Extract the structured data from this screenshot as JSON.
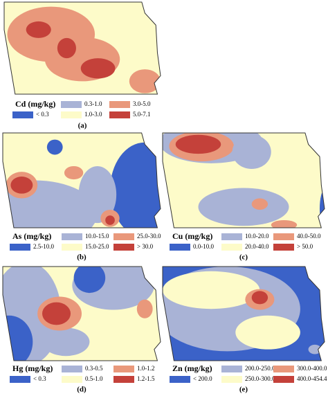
{
  "panels": [
    {
      "caption": "(a)",
      "legend_title": "Cd (mg/kg)",
      "legend": [
        {
          "label": "< 0.3",
          "color": "#3b62c8"
        },
        {
          "label": "0.3-1.0",
          "color": "#a9b3d6"
        },
        {
          "label": "1.0-3.0",
          "color": "#fdfbc9"
        },
        {
          "label": "3.0-5.0",
          "color": "#e9987b"
        },
        {
          "label": "5.0-7.1",
          "color": "#c4413a"
        }
      ]
    },
    {
      "caption": "(b)",
      "legend_title": "As (mg/kg)",
      "legend": [
        {
          "label": "2.5-10.0",
          "color": "#3b62c8"
        },
        {
          "label": "10.0-15.0",
          "color": "#a9b3d6"
        },
        {
          "label": "15.0-25.0",
          "color": "#fdfbc9"
        },
        {
          "label": "25.0-30.0",
          "color": "#e9987b"
        },
        {
          "label": "> 30.0",
          "color": "#c4413a"
        }
      ]
    },
    {
      "caption": "(c)",
      "legend_title": "Cu (mg/kg)",
      "legend": [
        {
          "label": "0.0-10.0",
          "color": "#3b62c8"
        },
        {
          "label": "10.0-20.0",
          "color": "#a9b3d6"
        },
        {
          "label": "20.0-40.0",
          "color": "#fdfbc9"
        },
        {
          "label": "40.0-50.0",
          "color": "#e9987b"
        },
        {
          "label": "> 50.0",
          "color": "#c4413a"
        }
      ]
    },
    {
      "caption": "(d)",
      "legend_title": "Hg (mg/kg)",
      "legend": [
        {
          "label": "< 0.3",
          "color": "#3b62c8"
        },
        {
          "label": "0.3-0.5",
          "color": "#a9b3d6"
        },
        {
          "label": "0.5-1.0",
          "color": "#fdfbc9"
        },
        {
          "label": "1.0-1.2",
          "color": "#e9987b"
        },
        {
          "label": "1.2-1.5",
          "color": "#c4413a"
        }
      ]
    },
    {
      "caption": "(e)",
      "legend_title": "Zn (mg/kg)",
      "legend": [
        {
          "label": "< 200.0",
          "color": "#3b62c8"
        },
        {
          "label": "200.0-250.0",
          "color": "#a9b3d6"
        },
        {
          "label": "250.0-300.0",
          "color": "#fdfbc9"
        },
        {
          "label": "300.0-400.0",
          "color": "#e9987b"
        },
        {
          "label": "400.0-454.4",
          "color": "#c4413a"
        }
      ]
    }
  ]
}
